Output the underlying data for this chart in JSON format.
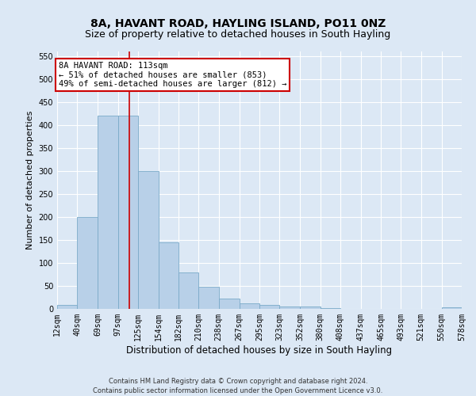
{
  "title": "8A, HAVANT ROAD, HAYLING ISLAND, PO11 0NZ",
  "subtitle": "Size of property relative to detached houses in South Hayling",
  "xlabel": "Distribution of detached houses by size in South Hayling",
  "ylabel": "Number of detached properties",
  "footer_line1": "Contains HM Land Registry data © Crown copyright and database right 2024.",
  "footer_line2": "Contains public sector information licensed under the Open Government Licence v3.0.",
  "annotation_title": "8A HAVANT ROAD: 113sqm",
  "annotation_line1": "← 51% of detached houses are smaller (853)",
  "annotation_line2": "49% of semi-detached houses are larger (812) →",
  "bar_color": "#b8d0e8",
  "bar_edge_color": "#7aaac8",
  "vline_color": "#cc0000",
  "vline_x": 113,
  "bin_edges": [
    12,
    40,
    69,
    97,
    125,
    154,
    182,
    210,
    238,
    267,
    295,
    323,
    352,
    380,
    408,
    437,
    465,
    493,
    521,
    550,
    578
  ],
  "bin_labels": [
    "12sqm",
    "40sqm",
    "69sqm",
    "97sqm",
    "125sqm",
    "154sqm",
    "182sqm",
    "210sqm",
    "238sqm",
    "267sqm",
    "295sqm",
    "323sqm",
    "352sqm",
    "380sqm",
    "408sqm",
    "437sqm",
    "465sqm",
    "493sqm",
    "521sqm",
    "550sqm",
    "578sqm"
  ],
  "bar_heights": [
    8,
    200,
    420,
    420,
    300,
    145,
    80,
    48,
    23,
    12,
    8,
    5,
    5,
    2,
    0,
    0,
    0,
    0,
    0,
    3
  ],
  "ylim": [
    0,
    560
  ],
  "yticks": [
    0,
    50,
    100,
    150,
    200,
    250,
    300,
    350,
    400,
    450,
    500,
    550
  ],
  "background_color": "#dce8f5",
  "plot_bg_color": "#dce8f5",
  "grid_color": "#ffffff",
  "title_fontsize": 10,
  "subtitle_fontsize": 9,
  "xlabel_fontsize": 8.5,
  "ylabel_fontsize": 8,
  "tick_fontsize": 7,
  "footer_fontsize": 6,
  "annotation_fontsize": 7.5,
  "annotation_box_color": "#ffffff",
  "annotation_border_color": "#cc0000"
}
